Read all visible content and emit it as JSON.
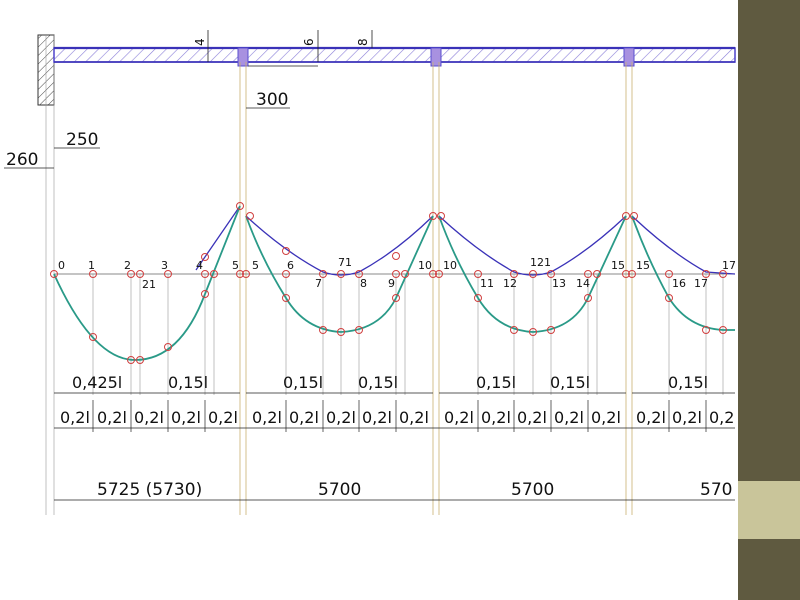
{
  "theme": {
    "bar_color": "#5f5a40",
    "accent_color": "#c9c59a",
    "beam_color": "#5a4fcf",
    "curve_teal": "#2a9a88",
    "curve_blue": "#3a32b8",
    "marker_red": "#d04040"
  },
  "dimensions": {
    "d300": "300",
    "d250": "250",
    "d260": "260",
    "cut_labels": [
      "4",
      "6",
      "8"
    ]
  },
  "point_labels": [
    {
      "id": "p0",
      "text": "0"
    },
    {
      "id": "p1",
      "text": "1"
    },
    {
      "id": "p2",
      "text": "2"
    },
    {
      "id": "p21",
      "text": "21"
    },
    {
      "id": "p3",
      "text": "3"
    },
    {
      "id": "p4",
      "text": "4"
    },
    {
      "id": "p5a",
      "text": "5"
    },
    {
      "id": "p5b",
      "text": "5"
    },
    {
      "id": "p6",
      "text": "6"
    },
    {
      "id": "p7",
      "text": "7"
    },
    {
      "id": "p71",
      "text": "71"
    },
    {
      "id": "p8",
      "text": "8"
    },
    {
      "id": "p9",
      "text": "9"
    },
    {
      "id": "p10a",
      "text": "10"
    },
    {
      "id": "p10b",
      "text": "10"
    },
    {
      "id": "p11",
      "text": "11"
    },
    {
      "id": "p12",
      "text": "12"
    },
    {
      "id": "p121",
      "text": "121"
    },
    {
      "id": "p13",
      "text": "13"
    },
    {
      "id": "p14",
      "text": "14"
    },
    {
      "id": "p15a",
      "text": "15"
    },
    {
      "id": "p15b",
      "text": "15"
    },
    {
      "id": "p16",
      "text": "16"
    },
    {
      "id": "p17a",
      "text": "17"
    },
    {
      "id": "p17b",
      "text": "17"
    }
  ],
  "fraction_row1": [
    "0,425l",
    "0,15l",
    "0,15l",
    "0,15l",
    "0,15l",
    "0,15l",
    "0,15l"
  ],
  "fraction_row2": [
    "0,2l",
    "0,2l",
    "0,2l",
    "0,2l",
    "0,2l",
    "0,2l",
    "0,2l",
    "0,2l",
    "0,2l",
    "0,2l",
    "0,2l",
    "0,2l",
    "0,2l",
    "0,2l",
    "0,2l",
    "0,2l",
    "0,2l",
    "0,2"
  ],
  "spans": [
    "5725 (5730)",
    "5700",
    "5700",
    "570"
  ]
}
